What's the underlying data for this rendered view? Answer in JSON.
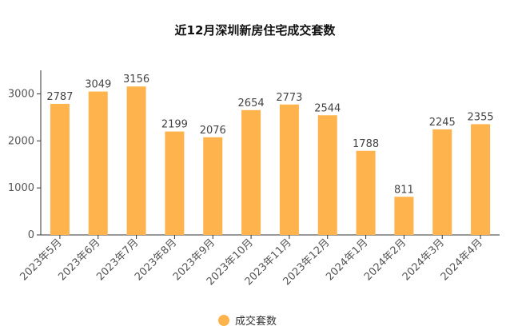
{
  "chart_data": {
    "type": "bar",
    "title": "近12月深圳新房住宅成交套数",
    "categories": [
      "2023年5月",
      "2023年6月",
      "2023年7月",
      "2023年8月",
      "2023年9月",
      "2023年10月",
      "2023年11月",
      "2023年12月",
      "2024年1月",
      "2024年2月",
      "2024年3月",
      "2024年4月"
    ],
    "series": [
      {
        "name": "成交套数",
        "values": [
          2787,
          3049,
          3156,
          2199,
          2076,
          2654,
          2773,
          2544,
          1788,
          811,
          2245,
          2355
        ]
      }
    ],
    "ylim": [
      0,
      3500
    ],
    "yticks": [
      0,
      1000,
      2000,
      3000
    ],
    "grid": false,
    "legend_position": "bottom-center",
    "bar_color": "#FFB34D"
  }
}
